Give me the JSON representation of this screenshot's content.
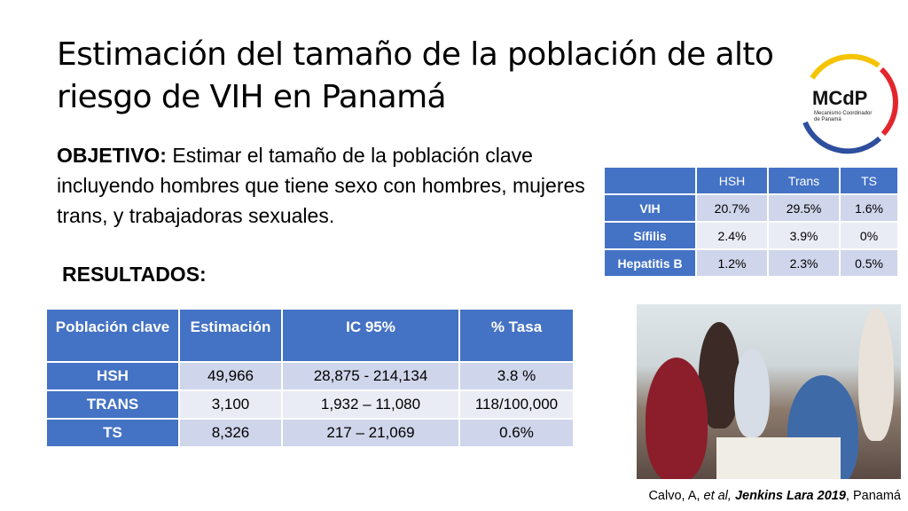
{
  "title": "Estimación del tamaño de la población de alto riesgo de VIH en Panamá",
  "logo": {
    "main": "MCdP",
    "line1": "Mecanismo Coordinador",
    "line2": "de Panamá"
  },
  "objective": {
    "label": "OBJETIVO:",
    "text": " Estimar el tamaño de la población clave incluyendo hombres que tiene sexo con hombres, mujeres trans, y trabajadoras sexuales."
  },
  "results_heading": "RESULTADOS:",
  "prevalence_table": {
    "columns": [
      "",
      "HSH",
      "Trans",
      "TS"
    ],
    "rows": [
      {
        "label": "VIH",
        "values": [
          "20.7%",
          "29.5%",
          "1.6%"
        ]
      },
      {
        "label": "Sífilis",
        "values": [
          "2.4%",
          "3.9%",
          "0%"
        ]
      },
      {
        "label": "Hepatitis B",
        "values": [
          "1.2%",
          "2.3%",
          "0.5%"
        ]
      }
    ]
  },
  "estimates_table": {
    "columns": [
      "Población clave",
      "Estimación",
      "IC 95%",
      "% Tasa"
    ],
    "rows": [
      {
        "label": "HSH",
        "values": [
          "49,966",
          "28,875 - 214,134",
          "3.8 %"
        ]
      },
      {
        "label": "TRANS",
        "values": [
          "3,100",
          "1,932 – 11,080",
          "118/100,000"
        ]
      },
      {
        "label": "TS",
        "values": [
          "8,326",
          "217 – 21,069",
          "0.6%"
        ]
      }
    ]
  },
  "caption": {
    "prefix": "Calvo, A, ",
    "etal": "et al, ",
    "source": "Jenkins Lara 2019",
    "suffix": ", Panamá"
  },
  "colors": {
    "table_header": "#4472c4",
    "row_dark": "#cfd5ea",
    "row_light": "#e9ebf5",
    "logo_red": "#e3262d",
    "logo_blue": "#2e4e9e",
    "logo_yellow": "#f5c400"
  }
}
